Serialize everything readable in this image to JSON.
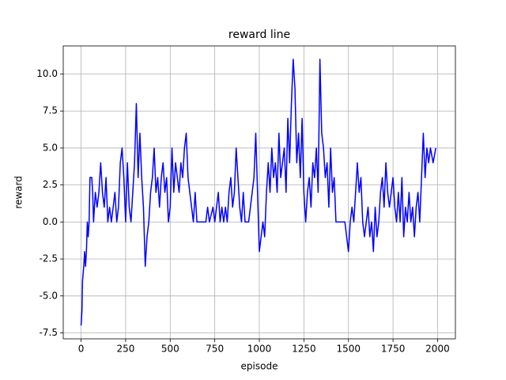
{
  "chart_data": {
    "type": "line",
    "title": "reward line",
    "x_label": "episode",
    "y_label": "reward",
    "color": "#0000ff",
    "grid": true,
    "x": [
      0,
      5,
      8,
      15,
      20,
      25,
      30,
      35,
      40,
      45,
      50,
      60,
      65,
      70,
      80,
      90,
      100,
      110,
      120,
      130,
      140,
      150,
      160,
      170,
      180,
      190,
      200,
      210,
      220,
      230,
      240,
      250,
      260,
      270,
      280,
      290,
      300,
      310,
      320,
      330,
      340,
      350,
      360,
      370,
      380,
      390,
      400,
      410,
      420,
      430,
      440,
      450,
      460,
      470,
      480,
      490,
      500,
      510,
      520,
      530,
      540,
      550,
      560,
      570,
      580,
      590,
      600,
      610,
      620,
      630,
      640,
      650,
      700,
      710,
      720,
      740,
      750,
      760,
      770,
      780,
      790,
      800,
      810,
      820,
      830,
      840,
      850,
      860,
      870,
      880,
      890,
      900,
      910,
      920,
      940,
      950,
      960,
      970,
      980,
      990,
      1000,
      1010,
      1020,
      1030,
      1040,
      1050,
      1060,
      1070,
      1080,
      1090,
      1100,
      1110,
      1120,
      1130,
      1140,
      1150,
      1160,
      1170,
      1180,
      1190,
      1200,
      1210,
      1220,
      1230,
      1240,
      1250,
      1260,
      1270,
      1280,
      1290,
      1300,
      1310,
      1320,
      1330,
      1340,
      1350,
      1360,
      1370,
      1380,
      1390,
      1400,
      1410,
      1420,
      1430,
      1480,
      1490,
      1500,
      1510,
      1520,
      1530,
      1540,
      1550,
      1560,
      1570,
      1580,
      1590,
      1600,
      1610,
      1620,
      1630,
      1640,
      1650,
      1660,
      1670,
      1680,
      1690,
      1700,
      1710,
      1720,
      1730,
      1740,
      1750,
      1760,
      1770,
      1780,
      1790,
      1800,
      1810,
      1820,
      1830,
      1840,
      1850,
      1860,
      1870,
      1880,
      1890,
      1900,
      1910,
      1920,
      1930,
      1940,
      1950,
      1960,
      1975,
      1990
    ],
    "values": [
      -7,
      -6,
      -4,
      -3,
      -2,
      -3,
      -2,
      0,
      -1,
      0,
      3,
      3,
      2,
      0,
      2,
      1,
      2,
      4,
      2,
      1,
      3,
      0,
      1,
      0,
      1,
      2,
      0,
      1,
      4,
      5,
      3,
      0,
      4,
      1,
      0,
      2,
      4,
      8,
      3,
      6,
      3,
      1,
      -3,
      -1,
      0,
      2,
      3,
      5,
      2,
      3,
      1,
      3,
      4,
      2,
      3,
      0,
      1,
      5,
      2,
      4,
      3,
      2,
      4,
      3,
      5,
      6,
      3,
      2,
      1,
      0,
      2,
      0,
      0,
      1,
      0,
      1,
      0,
      1,
      2,
      0,
      1,
      0,
      1,
      0,
      2,
      3,
      1,
      2,
      5,
      3,
      1,
      0,
      2,
      0,
      0,
      1,
      2,
      3,
      6,
      2,
      -2,
      -1,
      0,
      -1,
      2,
      4,
      2,
      5,
      3,
      4,
      2,
      6,
      3,
      4,
      5,
      2,
      7,
      4,
      8,
      11,
      9,
      4,
      6,
      3,
      7,
      2,
      0,
      2,
      3,
      1,
      4,
      3,
      5,
      2,
      11,
      6,
      5,
      3,
      4,
      1,
      5,
      2,
      3,
      0,
      0,
      -1,
      -2,
      0,
      1,
      0,
      2,
      4,
      2,
      3,
      0,
      -1,
      0,
      1,
      -1,
      0,
      -2,
      1,
      -1,
      0,
      2,
      3,
      1,
      4,
      2,
      1,
      2,
      3,
      1,
      0,
      2,
      0,
      3,
      -1,
      1,
      0,
      2,
      0,
      1,
      -1,
      1,
      2,
      0,
      3,
      6,
      3,
      5,
      4,
      5,
      4,
      5
    ],
    "xlim": [
      -100,
      2100
    ],
    "xticks": [
      0,
      250,
      500,
      750,
      1000,
      1250,
      1500,
      1750,
      2000
    ],
    "ylim": [
      -7.9,
      11.9
    ],
    "yticks": [
      -7.5,
      {
        "value": -5,
        "label": "-5.0"
      },
      -2.5,
      {
        "value": 0,
        "label": "0.0"
      },
      2.5,
      {
        "value": 5,
        "label": "5.0"
      },
      7.5,
      {
        "value": 10,
        "label": "10.0"
      }
    ]
  }
}
